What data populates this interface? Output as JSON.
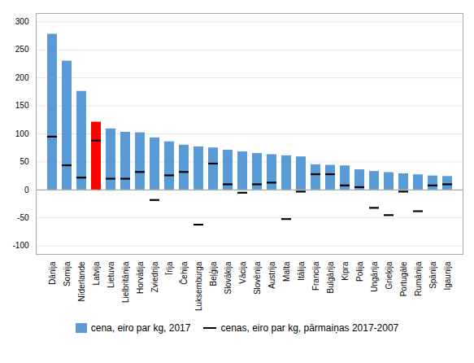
{
  "chart_data": {
    "type": "bar",
    "categories": [
      "Dānija",
      "Somija",
      "Nīderlande",
      "Latvija",
      "Lietuva",
      "Lielbritānija",
      "Horvātija",
      "Zviedrija",
      "Īrija",
      "Čehija",
      "Luksemburga",
      "Beļģija",
      "Slovākija",
      "Vācija",
      "Slovēnija",
      "Austrija",
      "Malta",
      "Itālija",
      "Francija",
      "Bulgārija",
      "Kipra",
      "Polija",
      "Ungārija",
      "Grieķija",
      "Portugāle",
      "Rumānija",
      "Spānija",
      "Igaunija"
    ],
    "series": [
      {
        "name": "cena, eiro par kg, 2017",
        "type": "bar",
        "color": "#5B9BD5",
        "colors": [
          "#5B9BD5",
          "#5B9BD5",
          "#5B9BD5",
          "#FF0000",
          "#5B9BD5",
          "#5B9BD5",
          "#5B9BD5",
          "#5B9BD5",
          "#5B9BD5",
          "#5B9BD5",
          "#5B9BD5",
          "#5B9BD5",
          "#5B9BD5",
          "#5B9BD5",
          "#5B9BD5",
          "#5B9BD5",
          "#5B9BD5",
          "#5B9BD5",
          "#5B9BD5",
          "#5B9BD5",
          "#5B9BD5",
          "#5B9BD5",
          "#5B9BD5",
          "#5B9BD5",
          "#5B9BD5",
          "#5B9BD5",
          "#5B9BD5",
          "#5B9BD5"
        ],
        "values": [
          278,
          230,
          176,
          121,
          109,
          103,
          102,
          93,
          86,
          80,
          77,
          75,
          71,
          68,
          65,
          63,
          61,
          59,
          45,
          44,
          43,
          36,
          33,
          31,
          29,
          27,
          25,
          24
        ]
      },
      {
        "name": "cenas, eiro par kg, pārmaiņas 2017-2007",
        "type": "scatter",
        "marker": "dash",
        "color": "#000000",
        "values": [
          95,
          44,
          22,
          88,
          20,
          20,
          32,
          -18,
          26,
          32,
          -62,
          47,
          10,
          -5,
          10,
          13,
          -52,
          -3,
          28,
          28,
          8,
          5,
          -32,
          -45,
          -3,
          -38,
          8,
          10
        ]
      }
    ],
    "ylim": [
      -115,
      315
    ],
    "yticks": [
      -100,
      -50,
      0,
      50,
      100,
      150,
      200,
      250,
      300
    ],
    "grid": true,
    "legend": "bottom"
  }
}
